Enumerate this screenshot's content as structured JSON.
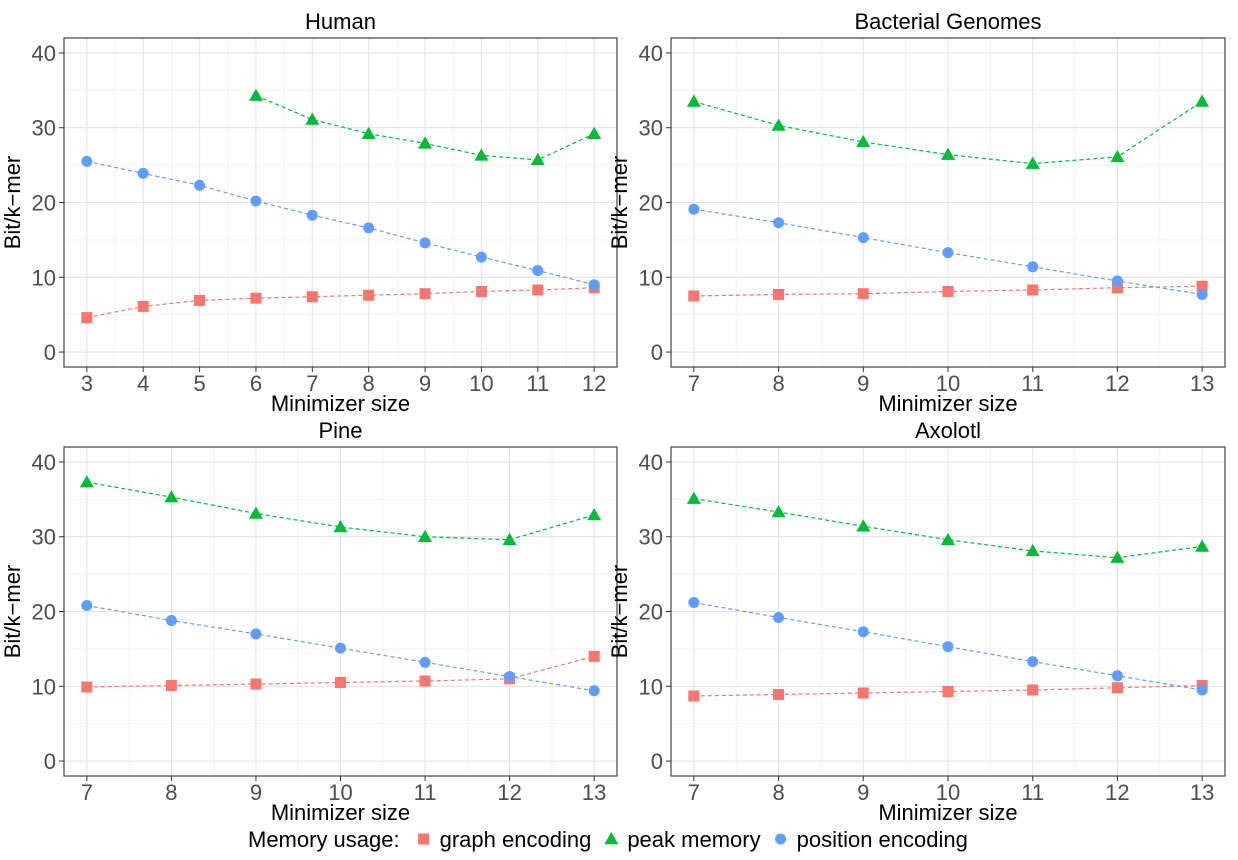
{
  "chart_data": [
    {
      "type": "line",
      "title": "Human",
      "xlabel": "Minimizer size",
      "ylabel": "Bit/k−mer",
      "ylim": [
        0,
        40
      ],
      "yticks": [
        0,
        10,
        20,
        30,
        40
      ],
      "xlim": [
        3,
        12
      ],
      "xticks": [
        3,
        4,
        5,
        6,
        7,
        8,
        9,
        10,
        11,
        12
      ],
      "grid": true,
      "series": [
        {
          "name": "graph encoding",
          "x": [
            3,
            4,
            5,
            6,
            7,
            8,
            9,
            10,
            11,
            12
          ],
          "y": [
            4.6,
            6.1,
            6.9,
            7.2,
            7.4,
            7.6,
            7.8,
            8.1,
            8.3,
            8.6
          ]
        },
        {
          "name": "peak memory",
          "x": [
            6,
            7,
            8,
            9,
            10,
            11,
            12
          ],
          "y": [
            34.3,
            31.1,
            29.2,
            27.9,
            26.3,
            25.7,
            29.2
          ]
        },
        {
          "name": "position encoding",
          "x": [
            3,
            4,
            5,
            6,
            7,
            8,
            9,
            10,
            11,
            12
          ],
          "y": [
            25.5,
            23.9,
            22.3,
            20.2,
            18.3,
            16.6,
            14.6,
            12.7,
            10.9,
            9.0
          ]
        }
      ]
    },
    {
      "type": "line",
      "title": "Bacterial Genomes",
      "xlabel": "Minimizer size",
      "ylabel": "Bit/k−mer",
      "ylim": [
        0,
        40
      ],
      "yticks": [
        0,
        10,
        20,
        30,
        40
      ],
      "xlim": [
        7,
        13
      ],
      "xticks": [
        7,
        8,
        9,
        10,
        11,
        12,
        13
      ],
      "grid": true,
      "series": [
        {
          "name": "graph encoding",
          "x": [
            7,
            8,
            9,
            10,
            11,
            12,
            13
          ],
          "y": [
            7.5,
            7.7,
            7.8,
            8.1,
            8.3,
            8.6,
            8.8
          ]
        },
        {
          "name": "peak memory",
          "x": [
            7,
            8,
            9,
            10,
            11,
            12,
            13
          ],
          "y": [
            33.5,
            30.3,
            28.1,
            26.4,
            25.2,
            26.1,
            33.5
          ]
        },
        {
          "name": "position encoding",
          "x": [
            7,
            8,
            9,
            10,
            11,
            12,
            13
          ],
          "y": [
            19.1,
            17.3,
            15.3,
            13.3,
            11.4,
            9.5,
            7.7
          ]
        }
      ]
    },
    {
      "type": "line",
      "title": "Pine",
      "xlabel": "Minimizer size",
      "ylabel": "Bit/k−mer",
      "ylim": [
        0,
        40
      ],
      "yticks": [
        0,
        10,
        20,
        30,
        40
      ],
      "xlim": [
        7,
        13
      ],
      "xticks": [
        7,
        8,
        9,
        10,
        11,
        12,
        13
      ],
      "grid": true,
      "series": [
        {
          "name": "graph encoding",
          "x": [
            7,
            8,
            9,
            10,
            11,
            12,
            13
          ],
          "y": [
            9.9,
            10.1,
            10.3,
            10.5,
            10.7,
            11.0,
            14.0
          ]
        },
        {
          "name": "peak memory",
          "x": [
            7,
            8,
            9,
            10,
            11,
            12,
            13
          ],
          "y": [
            37.3,
            35.3,
            33.1,
            31.3,
            30.0,
            29.6,
            32.9
          ]
        },
        {
          "name": "position encoding",
          "x": [
            7,
            8,
            9,
            10,
            11,
            12,
            13
          ],
          "y": [
            20.8,
            18.8,
            17.0,
            15.1,
            13.2,
            11.3,
            9.4
          ]
        }
      ]
    },
    {
      "type": "line",
      "title": "Axolotl",
      "xlabel": "Minimizer size",
      "ylabel": "Bit/k−mer",
      "ylim": [
        0,
        40
      ],
      "yticks": [
        0,
        10,
        20,
        30,
        40
      ],
      "xlim": [
        7,
        13
      ],
      "xticks": [
        7,
        8,
        9,
        10,
        11,
        12,
        13
      ],
      "grid": true,
      "series": [
        {
          "name": "graph encoding",
          "x": [
            7,
            8,
            9,
            10,
            11,
            12,
            13
          ],
          "y": [
            8.7,
            8.9,
            9.1,
            9.3,
            9.5,
            9.8,
            10.1
          ]
        },
        {
          "name": "peak memory",
          "x": [
            7,
            8,
            9,
            10,
            11,
            12,
            13
          ],
          "y": [
            35.1,
            33.3,
            31.4,
            29.6,
            28.1,
            27.2,
            28.7
          ]
        },
        {
          "name": "position encoding",
          "x": [
            7,
            8,
            9,
            10,
            11,
            12,
            13
          ],
          "y": [
            21.2,
            19.2,
            17.3,
            15.3,
            13.3,
            11.4,
            9.5
          ]
        }
      ]
    }
  ],
  "legend": {
    "title": "Memory usage:",
    "position": "bottom",
    "items": [
      {
        "name": "graph encoding",
        "color": "#F8766D",
        "shape": "square"
      },
      {
        "name": "peak memory",
        "color": "#00BA38",
        "shape": "triangle"
      },
      {
        "name": "position encoding",
        "color": "#619CFF",
        "shape": "circle"
      }
    ]
  }
}
